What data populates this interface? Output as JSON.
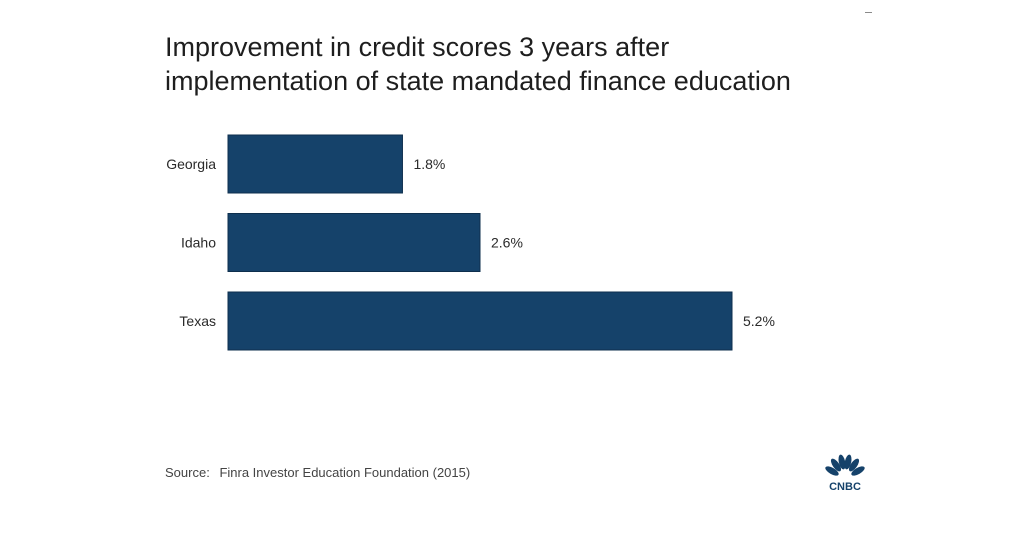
{
  "title_lines": [
    "Improvement in credit scores 3 years after",
    "implementation of state mandated finance education"
  ],
  "source": {
    "label": "Source:",
    "text": "Finra Investor Education Foundation (2015)"
  },
  "logo": {
    "name": "cnbc-peacock-logo",
    "text": "CNBC"
  },
  "colors": {
    "bar": "#15426a",
    "bar_stroke": "#0e2f4d",
    "label": "#2a2a2a"
  },
  "chart_data": {
    "type": "bar",
    "orientation": "horizontal",
    "title": "Improvement in credit scores 3 years after implementation of state mandated finance education",
    "categories": [
      "Georgia",
      "Idaho",
      "Texas"
    ],
    "values": [
      1.8,
      2.6,
      5.2
    ],
    "data_labels": [
      "1.8%",
      "2.6%",
      "5.2%"
    ],
    "xlabel": "",
    "ylabel": "",
    "xlim": [
      0,
      5.2
    ],
    "grid": false,
    "legend": "none"
  }
}
